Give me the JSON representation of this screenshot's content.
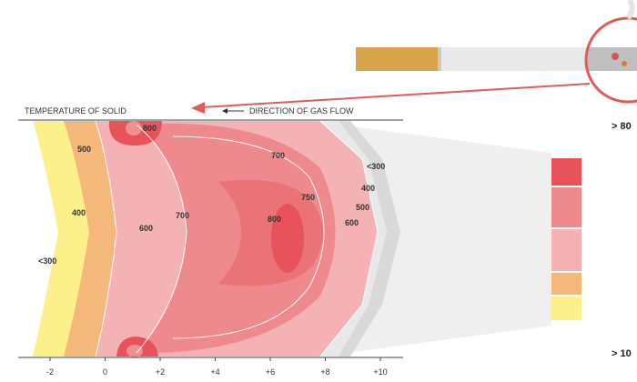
{
  "header": {
    "left_label": "TEMPERATURE OF SOLID",
    "right_label": "DIRECTION OF GAS FLOW"
  },
  "x_axis": {
    "ticks": [
      "-2",
      "0",
      "+2",
      "+4",
      "+6",
      "+8",
      "+10"
    ]
  },
  "isotherm_labels": {
    "a800_top": "800",
    "a500": "500",
    "a400": "400",
    "a300_left": "<300",
    "a600": "600",
    "a700_mid": "700",
    "a800_core": "800",
    "a700_top": "700",
    "a750": "750",
    "a600_right": "600",
    "a500_right": "500",
    "a400_right": "400",
    "a300_right": "<300"
  },
  "legend": {
    "top_label": "> 80",
    "bottom_label": "> 10"
  },
  "colors": {
    "band_800": "#e8535b",
    "band_700": "#ee8a8d",
    "band_600": "#f4b2b4",
    "band_500": "#f4b87a",
    "band_300": "#fbf08a",
    "gray_zone": "#d9d9d9",
    "arrow_red": "#e05b5b"
  }
}
